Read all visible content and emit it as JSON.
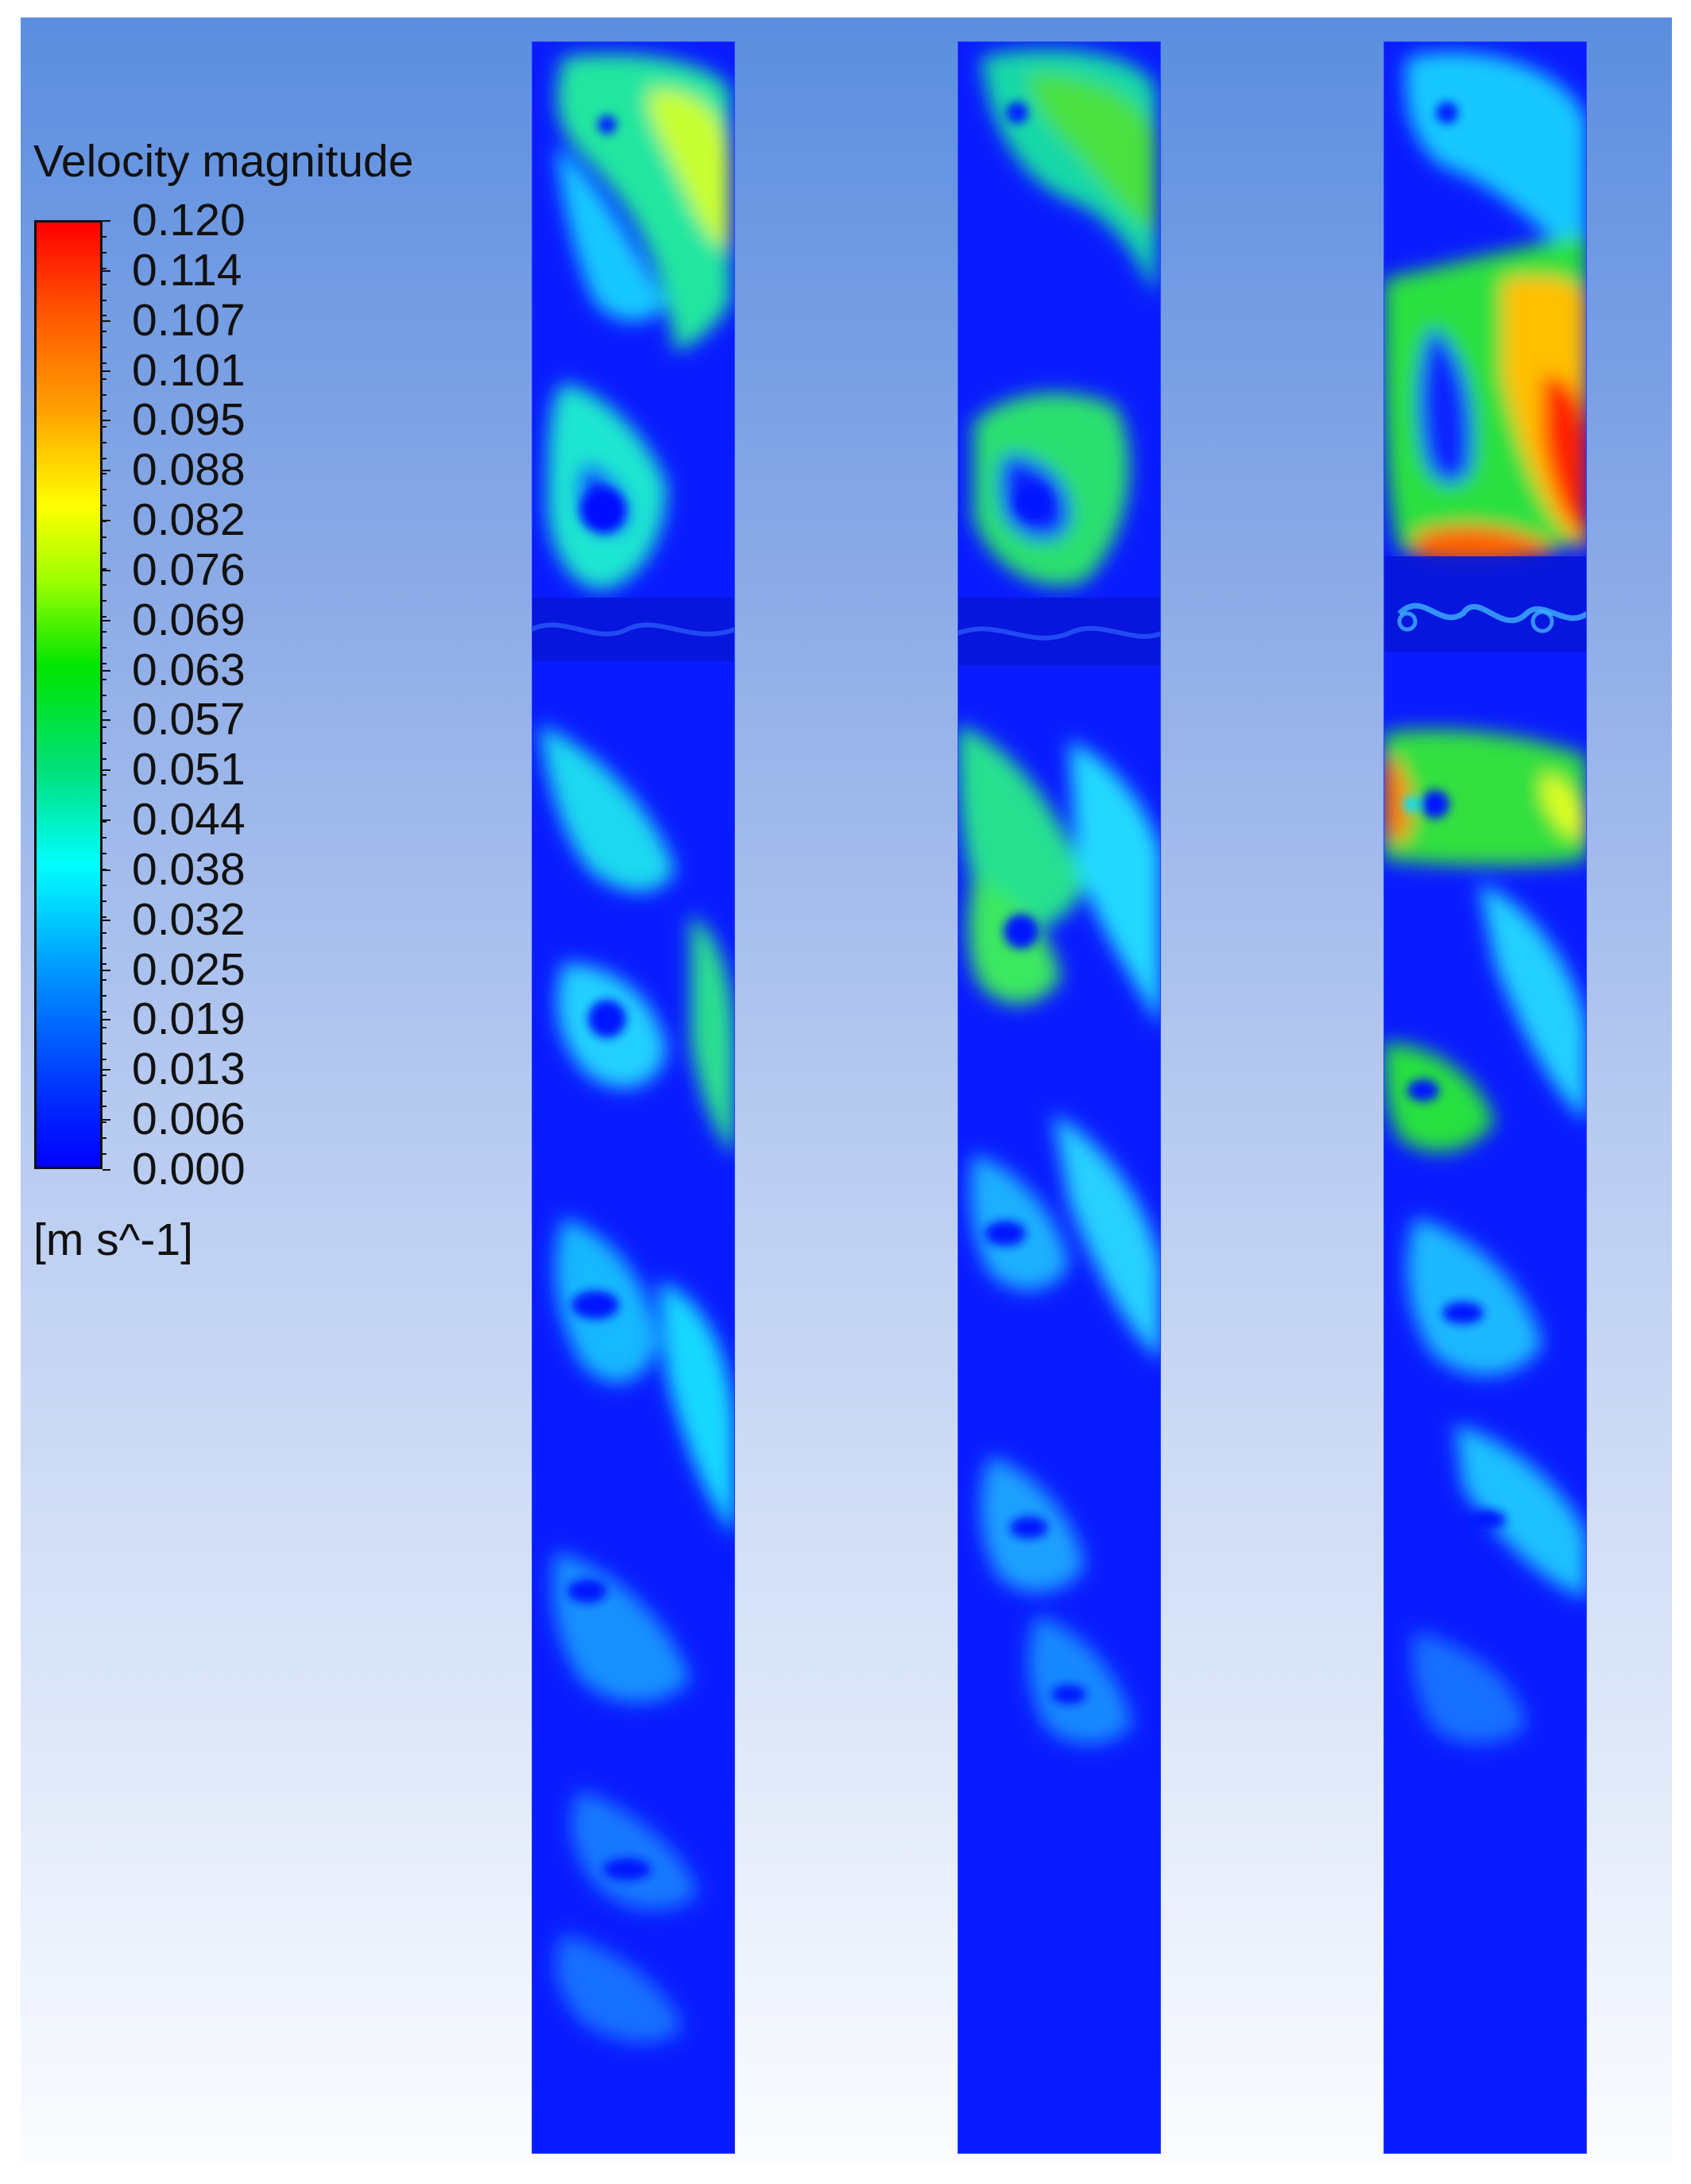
{
  "legend": {
    "title": "Velocity magnitude",
    "unit": "[m s^-1]",
    "tick_labels": [
      "0.120",
      "0.114",
      "0.107",
      "0.101",
      "0.095",
      "0.088",
      "0.082",
      "0.076",
      "0.069",
      "0.063",
      "0.057",
      "0.051",
      "0.044",
      "0.038",
      "0.032",
      "0.025",
      "0.019",
      "0.013",
      "0.006",
      "0.000"
    ]
  },
  "chart_data": {
    "type": "heatmap",
    "title": "",
    "quantity": "Velocity magnitude",
    "unit": "m s^-1",
    "color_scale": {
      "min": 0.0,
      "max": 0.12,
      "colormap": "rainbow (blue-cyan-green-yellow-red)",
      "tick_values": [
        0.12,
        0.114,
        0.107,
        0.101,
        0.095,
        0.088,
        0.082,
        0.076,
        0.069,
        0.063,
        0.057,
        0.051,
        0.044,
        0.038,
        0.032,
        0.025,
        0.019,
        0.013,
        0.006,
        0.0
      ]
    },
    "panels": [
      {
        "name": "",
        "upper_zone": "large vortices, peak ~0.085 near right wall (yellow-green)",
        "middle_zone": "vortex street with values ~0.03-0.06",
        "lower_zone": "mostly low velocity 0.005-0.03"
      },
      {
        "name": "",
        "upper_zone": "two large recirculation cells, peak ~0.07 (green)",
        "middle_zone": "green/cyan eddies ~0.04-0.07",
        "lower_zone": "mostly low velocity 0.000-0.02"
      },
      {
        "name": "",
        "upper_zone": "strong flow near right wall, peak ~0.12 (red)",
        "middle_zone": "eddies up to ~0.11 near left wall, otherwise 0.03-0.07",
        "lower_zone": "mostly low velocity 0.000-0.02"
      }
    ]
  },
  "colors": {
    "background_top": "#5b8ee0",
    "background_bottom": "#fbfcff",
    "low": "#0000ff",
    "mid": "#00ffff",
    "green": "#00e500",
    "yellow": "#ffff00",
    "high": "#ff0000"
  }
}
